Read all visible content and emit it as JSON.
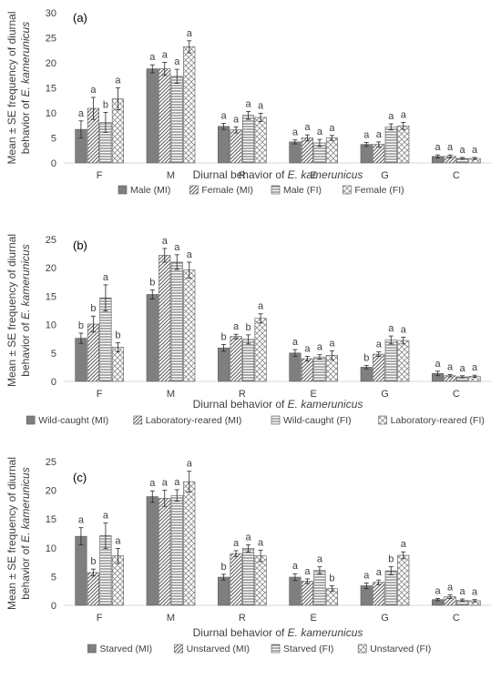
{
  "chart_data": [
    {
      "type": "bar",
      "panel_label": "(a)",
      "ylabel_line1": "Mean ± SE frequency of diurnal",
      "ylabel_line2_prefix": "behavior of ",
      "ylabel_line2_species": "E. kamerunicus",
      "xlabel_prefix": "Diurnal behavior of ",
      "xlabel_species": "E. kamerunicus",
      "ylim": [
        0,
        30
      ],
      "yticks": [
        0,
        5,
        10,
        15,
        20,
        25,
        30
      ],
      "categories": [
        "F",
        "M",
        "R",
        "E",
        "G",
        "C"
      ],
      "legend_position": "bottom",
      "series": [
        {
          "name": "Male (MI)",
          "pattern": "solid",
          "values": [
            6.7,
            18.8,
            7.3,
            4.2,
            3.7,
            1.3
          ],
          "errors": [
            1.7,
            0.8,
            0.6,
            0.4,
            0.4,
            0.3
          ],
          "letters": [
            "a",
            "a",
            "a",
            "a",
            "a",
            "a"
          ]
        },
        {
          "name": "Female (MI)",
          "pattern": "diag",
          "values": [
            10.9,
            18.8,
            6.6,
            5.0,
            3.7,
            1.3
          ],
          "errors": [
            2.2,
            1.3,
            0.6,
            0.6,
            0.5,
            0.3
          ],
          "letters": [
            "a",
            "a",
            "a",
            "a",
            "a",
            "a"
          ]
        },
        {
          "name": "Male (FI)",
          "pattern": "horiz",
          "values": [
            8.1,
            17.3,
            9.5,
            4.0,
            7.2,
            0.9
          ],
          "errors": [
            2.0,
            1.4,
            0.8,
            0.7,
            0.6,
            0.2
          ],
          "letters": [
            "b",
            "a",
            "a",
            "a",
            "a",
            "a"
          ]
        },
        {
          "name": "Female (FI)",
          "pattern": "cross",
          "values": [
            12.8,
            23.2,
            9.1,
            5.0,
            7.4,
            0.9
          ],
          "errors": [
            2.2,
            1.2,
            0.8,
            0.5,
            0.7,
            0.2
          ],
          "letters": [
            "a",
            "a",
            "a",
            "a",
            "a",
            "a"
          ]
        }
      ]
    },
    {
      "type": "bar",
      "panel_label": "(b)",
      "ylabel_line1": "Mean ± SE frequency of diurnal",
      "ylabel_line2_prefix": "behavior of ",
      "ylabel_line2_species": "E. kamerunicus",
      "xlabel_prefix": "Diurnal behavior of ",
      "xlabel_species": "E. kamerunicus",
      "ylim": [
        0,
        25
      ],
      "yticks": [
        0,
        5,
        10,
        15,
        20,
        25
      ],
      "categories": [
        "F",
        "M",
        "R",
        "E",
        "G",
        "C"
      ],
      "legend_position": "bottom",
      "series": [
        {
          "name": "Wild-caught (MI)",
          "pattern": "solid",
          "values": [
            7.6,
            15.3,
            5.9,
            5.0,
            2.5,
            1.4
          ],
          "errors": [
            0.9,
            0.8,
            0.6,
            0.6,
            0.3,
            0.4
          ],
          "letters": [
            "b",
            "b",
            "b",
            "a",
            "b",
            "a"
          ]
        },
        {
          "name": "Laboratory-reared (MI)",
          "pattern": "diag",
          "values": [
            10.1,
            22.2,
            7.9,
            4.0,
            4.8,
            1.0
          ],
          "errors": [
            1.4,
            1.2,
            0.4,
            0.4,
            0.4,
            0.2
          ],
          "letters": [
            "b",
            "a",
            "a",
            "a",
            "a",
            "a"
          ]
        },
        {
          "name": "Wild-caught (FI)",
          "pattern": "horiz",
          "values": [
            14.7,
            21.0,
            7.4,
            4.3,
            7.3,
            0.8
          ],
          "errors": [
            2.3,
            1.3,
            0.8,
            0.4,
            0.7,
            0.2
          ],
          "letters": [
            "a",
            "a",
            "b",
            "a",
            "a",
            "a"
          ]
        },
        {
          "name": "Laboratory-reared (FI)",
          "pattern": "cross",
          "values": [
            6.0,
            19.6,
            11.1,
            4.6,
            7.2,
            0.9
          ],
          "errors": [
            0.8,
            1.4,
            0.8,
            0.8,
            0.6,
            0.2
          ],
          "letters": [
            "b",
            "a",
            "a",
            "a",
            "a",
            "a"
          ]
        }
      ]
    },
    {
      "type": "bar",
      "panel_label": "(c)",
      "ylabel_line1": "Mean ± SE frequency of diurnal",
      "ylabel_line2_prefix": "behavior of ",
      "ylabel_line2_species": "E. kamerunicus",
      "xlabel_prefix": "Diurnal behavior of ",
      "xlabel_species": "E. kamerunicus",
      "ylim": [
        0,
        25
      ],
      "yticks": [
        0,
        5,
        10,
        15,
        20,
        25
      ],
      "categories": [
        "F",
        "M",
        "R",
        "E",
        "G",
        "C"
      ],
      "legend_position": "bottom",
      "series": [
        {
          "name": "Starved (MI)",
          "pattern": "solid",
          "values": [
            12.0,
            18.9,
            4.9,
            4.9,
            3.4,
            1.0
          ],
          "errors": [
            1.5,
            1.0,
            0.5,
            0.6,
            0.5,
            0.2
          ],
          "letters": [
            "a",
            "a",
            "b",
            "a",
            "a",
            "a"
          ]
        },
        {
          "name": "Unstarved (MI)",
          "pattern": "diag",
          "values": [
            5.7,
            18.6,
            9.0,
            4.2,
            4.0,
            1.5
          ],
          "errors": [
            0.6,
            1.4,
            0.5,
            0.4,
            0.4,
            0.3
          ],
          "letters": [
            "b",
            "a",
            "a",
            "a",
            "a",
            "a"
          ]
        },
        {
          "name": "Starved (FI)",
          "pattern": "horiz",
          "values": [
            12.1,
            19.1,
            9.9,
            6.1,
            6.0,
            0.9
          ],
          "errors": [
            2.2,
            1.0,
            0.6,
            0.6,
            0.7,
            0.2
          ],
          "letters": [
            "a",
            "a",
            "a",
            "a",
            "b",
            "a"
          ]
        },
        {
          "name": "Unstarved (FI)",
          "pattern": "cross",
          "values": [
            8.6,
            21.5,
            8.6,
            2.9,
            8.7,
            0.8
          ],
          "errors": [
            1.3,
            1.8,
            1.0,
            0.5,
            0.6,
            0.2
          ],
          "letters": [
            "a",
            "a",
            "a",
            "b",
            "a",
            "a"
          ]
        }
      ]
    }
  ]
}
